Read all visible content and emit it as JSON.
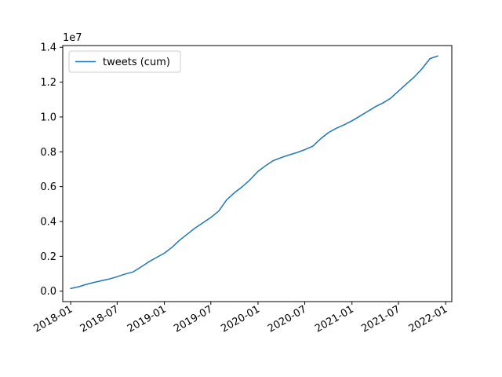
{
  "chart_data": {
    "type": "line",
    "xlabel": "",
    "ylabel": "",
    "y_offset_label": "1e7",
    "xlim": [
      "2017-12-01",
      "2022-01-25"
    ],
    "ylim": [
      -0.06,
      1.41
    ],
    "grid": false,
    "legend_position": "top-left",
    "x_tick_labels": [
      "2018-01",
      "2018-07",
      "2019-01",
      "2019-07",
      "2020-01",
      "2020-07",
      "2021-01",
      "2021-07",
      "2022-01"
    ],
    "y_tick_labels": [
      "0.0",
      "0.2",
      "0.4",
      "0.6",
      "0.8",
      "1.0",
      "1.2",
      "1.4"
    ],
    "series": [
      {
        "name": "tweets (cum)",
        "color": "#1f77b4",
        "x": [
          "2018-01-01",
          "2018-02-01",
          "2018-03-01",
          "2018-04-01",
          "2018-05-01",
          "2018-06-01",
          "2018-07-01",
          "2018-08-01",
          "2018-09-01",
          "2018-10-01",
          "2018-11-01",
          "2018-12-01",
          "2019-01-01",
          "2019-02-01",
          "2019-03-01",
          "2019-04-01",
          "2019-05-01",
          "2019-06-01",
          "2019-07-01",
          "2019-08-01",
          "2019-09-01",
          "2019-10-01",
          "2019-11-01",
          "2019-12-01",
          "2020-01-01",
          "2020-02-01",
          "2020-03-01",
          "2020-04-01",
          "2020-05-01",
          "2020-06-01",
          "2020-07-01",
          "2020-08-01",
          "2020-09-01",
          "2020-10-01",
          "2020-11-01",
          "2020-12-01",
          "2021-01-01",
          "2021-02-01",
          "2021-03-01",
          "2021-04-01",
          "2021-05-01",
          "2021-06-01",
          "2021-07-01",
          "2021-08-01",
          "2021-09-01",
          "2021-10-01",
          "2021-11-01",
          "2021-12-01"
        ],
        "values": [
          0.015,
          0.025,
          0.038,
          0.05,
          0.06,
          0.07,
          0.083,
          0.098,
          0.11,
          0.138,
          0.168,
          0.193,
          0.218,
          0.253,
          0.292,
          0.328,
          0.363,
          0.393,
          0.423,
          0.46,
          0.525,
          0.565,
          0.6,
          0.64,
          0.688,
          0.722,
          0.75,
          0.767,
          0.782,
          0.796,
          0.812,
          0.832,
          0.875,
          0.91,
          0.935,
          0.955,
          0.978,
          1.005,
          1.03,
          1.058,
          1.08,
          1.108,
          1.148,
          1.19,
          1.23,
          1.277,
          1.335,
          1.35
        ]
      }
    ]
  }
}
